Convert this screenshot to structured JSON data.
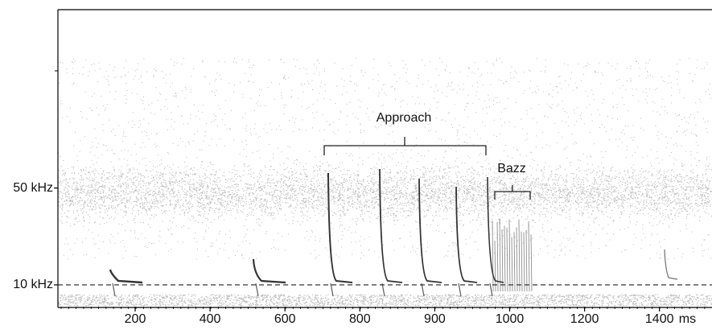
{
  "chart_data": {
    "type": "spectrogram",
    "categories": [
      "200",
      "400",
      "600",
      "800",
      "900",
      "1000",
      "1200",
      "1400"
    ],
    "x_unit": "ms",
    "ylim": [
      1,
      123.7
    ],
    "yticks": [
      {
        "value": 10,
        "label": "10 kHz"
      },
      {
        "value": 50,
        "label": "50 kHz"
      }
    ],
    "reference_line": 10,
    "annotations": [
      "Approach",
      "Bazz"
    ]
  }
}
